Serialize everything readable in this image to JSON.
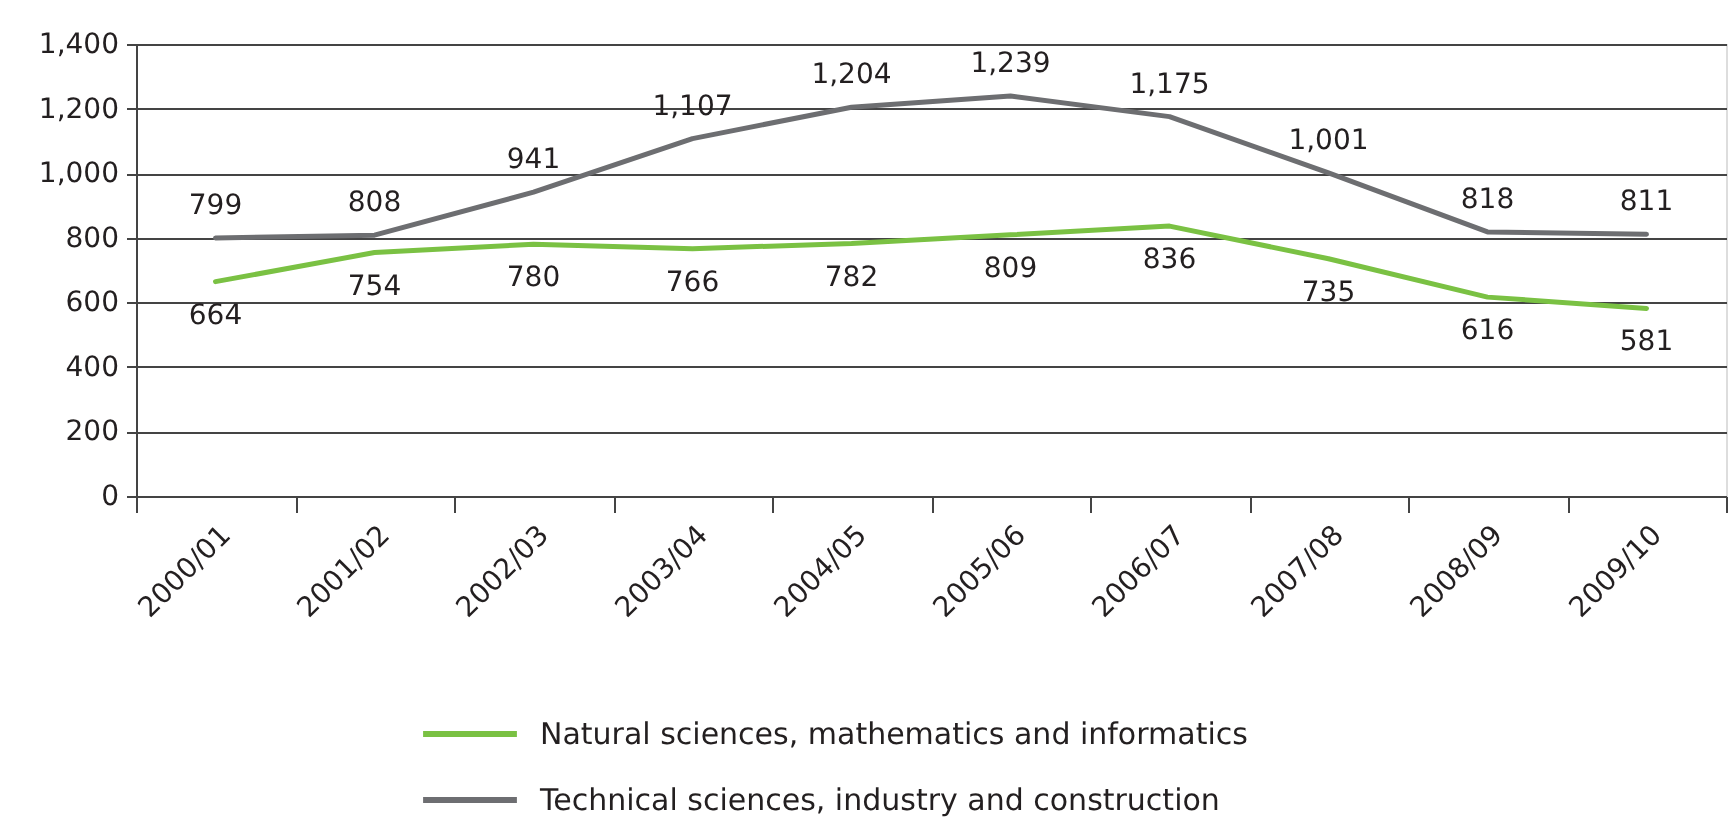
{
  "chart_data": {
    "type": "line",
    "categories": [
      "2000/01",
      "2001/02",
      "2002/03",
      "2003/04",
      "2004/05",
      "2005/06",
      "2006/07",
      "2007/08",
      "2008/09",
      "2009/10"
    ],
    "series": [
      {
        "name": "Natural sciences, mathematics and informatics",
        "color": "#7ac143",
        "values": [
          664,
          754,
          780,
          766,
          782,
          809,
          836,
          735,
          616,
          581
        ],
        "value_labels": [
          "664",
          "754",
          "780",
          "766",
          "782",
          "809",
          "836",
          "735",
          "616",
          "581"
        ]
      },
      {
        "name": "Technical sciences, industry and construction",
        "color": "#6d6e71",
        "values": [
          799,
          808,
          941,
          1107,
          1204,
          1239,
          1175,
          1001,
          818,
          811
        ],
        "value_labels": [
          "799",
          "808",
          "941",
          "1,107",
          "1,204",
          "1,239",
          "1,175",
          "1,001",
          "818",
          "811"
        ]
      }
    ],
    "ylim": [
      0,
      1400
    ],
    "yticks": [
      0,
      200,
      400,
      600,
      800,
      {
        "value": 1000,
        "label": "1,000"
      },
      {
        "value": 1200,
        "label": "1,200"
      },
      {
        "value": 1400,
        "label": "1,400"
      }
    ],
    "grid": "y",
    "legend": "bottom",
    "marker": "none",
    "line_style": "solid"
  }
}
